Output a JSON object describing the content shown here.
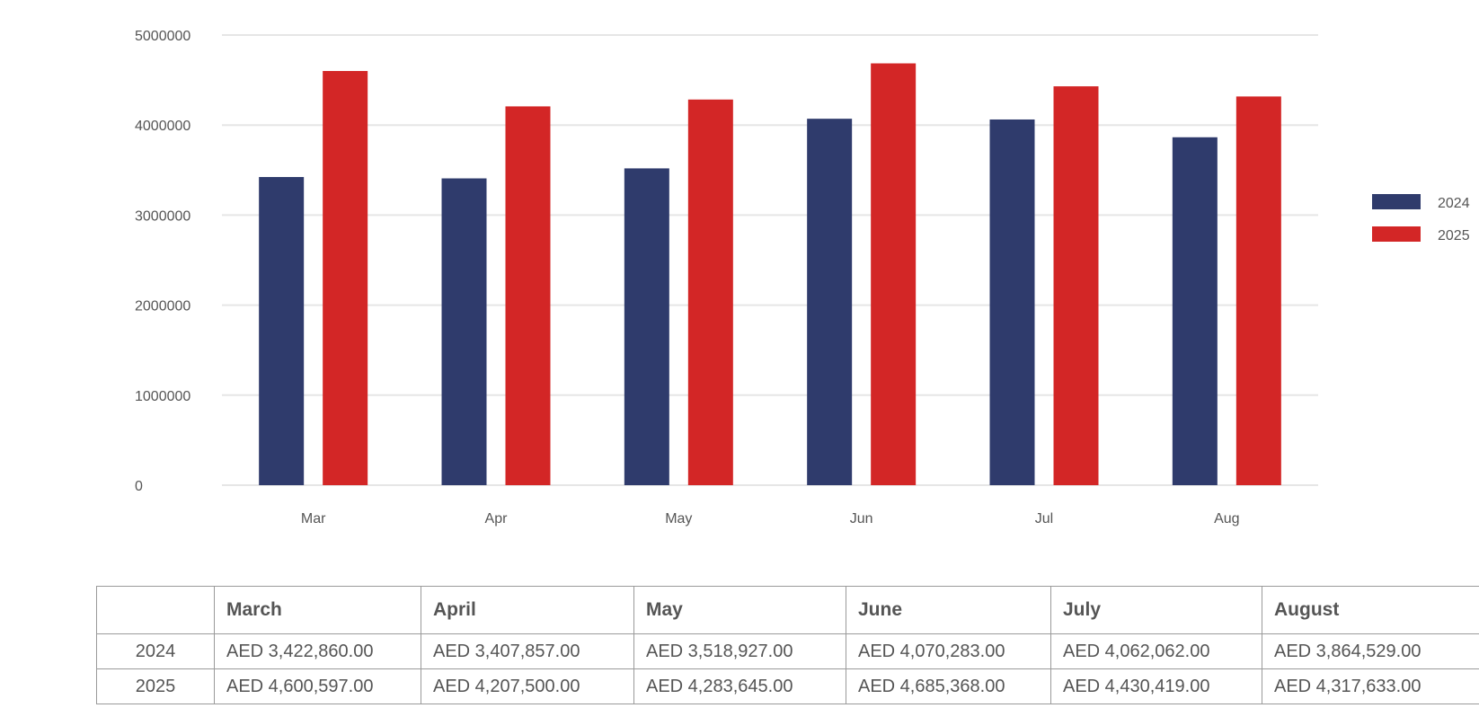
{
  "chart_data": {
    "type": "bar",
    "categories": [
      "Mar",
      "Apr",
      "May",
      "Jun",
      "Jul",
      "Aug"
    ],
    "series": [
      {
        "name": "2024",
        "color": "#2f3b6c",
        "values": [
          3422860,
          3407857,
          3518927,
          4070283,
          4062062,
          3864529
        ]
      },
      {
        "name": "2025",
        "color": "#d32626",
        "values": [
          4600597,
          4207500,
          4283645,
          4685368,
          4430419,
          4317633
        ]
      }
    ],
    "ylim": [
      0,
      5000000
    ],
    "yticks": [
      "0",
      "1000000",
      "2000000",
      "3000000",
      "4000000",
      "5000000"
    ],
    "title": "",
    "xlabel": "",
    "ylabel": "",
    "grid": true,
    "legend_position": "right"
  },
  "table": {
    "corner": "",
    "headers": [
      "March",
      "April",
      "May",
      "June",
      "July",
      "August"
    ],
    "rows": [
      {
        "label": "2024",
        "cells": [
          "AED 3,422,860.00",
          "AED 3,407,857.00",
          "AED 3,518,927.00",
          "AED 4,070,283.00",
          "AED 4,062,062.00",
          "AED 3,864,529.00"
        ]
      },
      {
        "label": "2025",
        "cells": [
          "AED 4,600,597.00",
          "AED 4,207,500.00",
          "AED 4,283,645.00",
          "AED 4,685,368.00",
          "AED 4,430,419.00",
          "AED 4,317,633.00"
        ]
      }
    ]
  }
}
